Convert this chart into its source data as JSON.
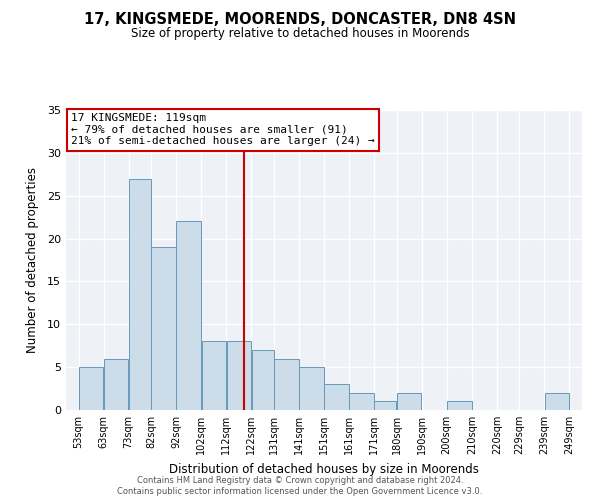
{
  "title": "17, KINGSMEDE, MOORENDS, DONCASTER, DN8 4SN",
  "subtitle": "Size of property relative to detached houses in Moorends",
  "xlabel": "Distribution of detached houses by size in Moorends",
  "ylabel": "Number of detached properties",
  "bar_color": "#ccdce8",
  "bar_edge_color": "#6699bb",
  "background_color": "#eef2f7",
  "vline_x": 119,
  "vline_color": "#cc0000",
  "annotation_title": "17 KINGSMEDE: 119sqm",
  "annotation_line1": "← 79% of detached houses are smaller (91)",
  "annotation_line2": "21% of semi-detached houses are larger (24) →",
  "annotation_box_color": "#ffffff",
  "annotation_box_edge": "#cc0000",
  "bins": [
    53,
    63,
    73,
    82,
    92,
    102,
    112,
    122,
    131,
    141,
    151,
    161,
    171,
    180,
    190,
    200,
    210,
    220,
    229,
    239,
    249
  ],
  "counts": [
    5,
    6,
    27,
    19,
    22,
    8,
    8,
    7,
    6,
    5,
    3,
    2,
    1,
    2,
    0,
    1,
    0,
    0,
    0,
    2
  ],
  "ylim": [
    0,
    35
  ],
  "yticks": [
    0,
    5,
    10,
    15,
    20,
    25,
    30,
    35
  ],
  "footer1": "Contains HM Land Registry data © Crown copyright and database right 2024.",
  "footer2": "Contains public sector information licensed under the Open Government Licence v3.0."
}
